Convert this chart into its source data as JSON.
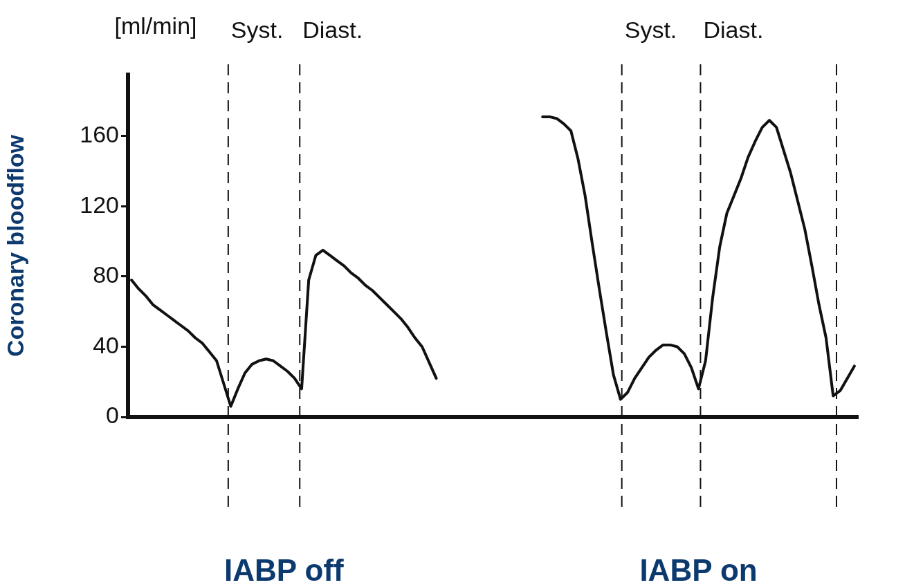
{
  "chart_data": {
    "type": "line",
    "ylabel": "Coronary bloodflow",
    "annotations": [
      "[ml/min]",
      "Syst.",
      "Diast.",
      "Syst.",
      "Diast.",
      "IABP off",
      "IABP on"
    ],
    "categories": [
      null,
      null,
      null,
      null,
      null,
      null,
      null,
      null,
      null,
      null,
      null,
      null,
      null,
      null,
      null,
      null,
      null,
      null,
      null,
      null,
      null,
      null,
      null,
      null,
      null,
      null,
      null,
      null,
      null,
      null,
      null,
      null,
      null,
      null,
      null,
      null,
      null,
      null,
      null,
      null,
      null,
      null,
      null,
      null,
      null,
      null,
      null,
      null,
      null,
      null,
      null,
      null,
      null,
      null,
      null,
      null,
      null,
      null,
      null,
      null,
      null,
      null,
      null,
      null,
      null,
      null,
      null,
      null,
      null,
      null,
      null,
      null,
      null,
      null,
      null,
      null,
      null,
      null,
      null,
      null,
      null,
      null,
      null,
      null,
      null,
      null,
      null,
      null,
      null,
      null,
      null,
      null,
      null,
      null,
      null,
      null,
      null,
      null,
      null,
      null,
      null,
      null,
      null
    ],
    "ylim": [
      0,
      195
    ],
    "yticks": [
      0,
      40,
      80,
      120,
      160
    ],
    "tick_labels": "y",
    "grid": false,
    "legend": false,
    "marker": "none",
    "line_style": "solid",
    "series": [
      {
        "color": "#111111",
        "values": [
          78,
          73,
          69,
          64,
          61,
          58,
          55,
          52,
          49,
          45,
          42,
          37,
          32,
          19,
          6,
          16,
          25,
          30,
          32,
          33,
          32,
          29,
          26,
          22,
          16,
          78,
          92,
          95,
          92,
          89,
          86,
          82,
          79,
          75,
          72,
          68,
          64,
          60,
          56,
          51,
          45,
          40,
          31,
          22,
          null,
          null,
          null,
          null,
          null,
          null,
          null,
          null,
          null,
          null,
          null,
          null,
          null,
          null,
          null,
          null,
          null,
          null,
          null,
          null,
          null,
          null,
          null,
          null,
          null,
          null,
          null,
          null,
          null,
          null,
          null,
          null,
          null,
          null,
          null,
          null,
          null,
          null,
          null,
          null,
          null,
          null,
          null,
          null,
          null,
          null,
          null,
          null,
          null,
          null,
          null,
          null,
          null,
          null,
          null,
          null,
          null,
          null,
          null
        ]
      },
      {
        "color": "#111111",
        "values": [
          null,
          null,
          null,
          null,
          null,
          null,
          null,
          null,
          null,
          null,
          null,
          null,
          null,
          null,
          null,
          null,
          null,
          null,
          null,
          null,
          null,
          null,
          null,
          null,
          null,
          null,
          null,
          null,
          null,
          null,
          null,
          null,
          null,
          null,
          null,
          null,
          null,
          null,
          null,
          null,
          null,
          null,
          null,
          null,
          null,
          null,
          null,
          null,
          null,
          null,
          null,
          null,
          null,
          null,
          null,
          null,
          null,
          null,
          171,
          171,
          170,
          167,
          163,
          147,
          126,
          99,
          73,
          48,
          24,
          10,
          14,
          22,
          28,
          34,
          38,
          41,
          41,
          40,
          36,
          28,
          16,
          32,
          68,
          97,
          116,
          126,
          136,
          148,
          157,
          165,
          169,
          165,
          152,
          139,
          123,
          107,
          86,
          64,
          45,
          12,
          15,
          22,
          29
        ]
      }
    ]
  }
}
